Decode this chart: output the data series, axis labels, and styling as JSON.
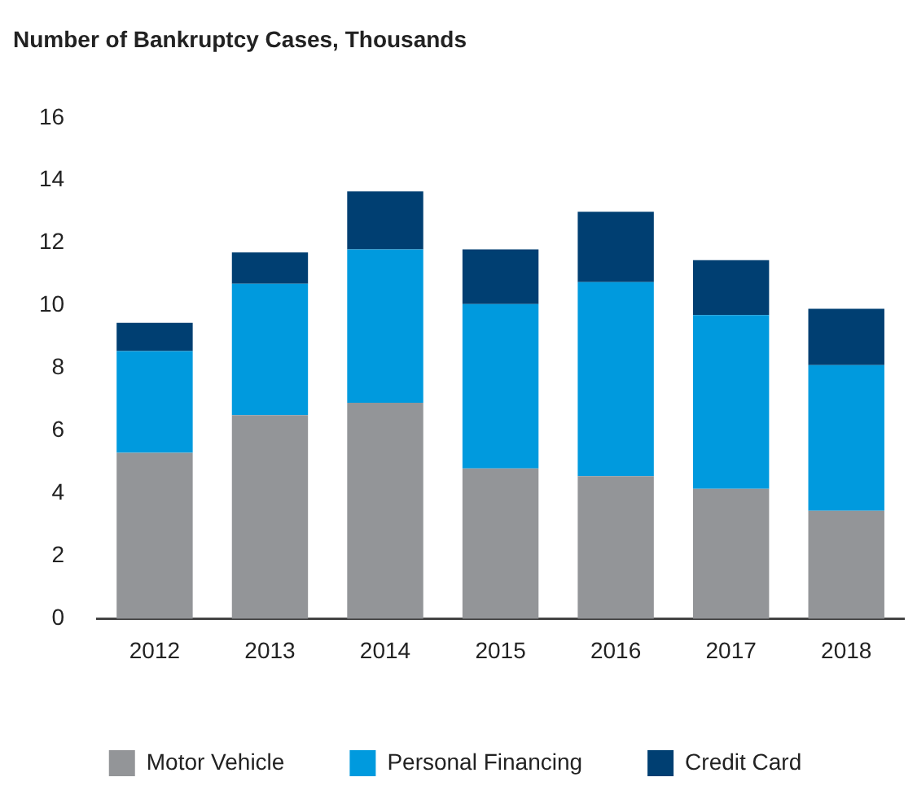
{
  "chart_data": {
    "type": "bar",
    "title": "Number of Bankruptcy Cases, Thousands",
    "categories": [
      "2012",
      "2013",
      "2014",
      "2015",
      "2016",
      "2017",
      "2018"
    ],
    "stacked": true,
    "ylim": [
      0,
      16
    ],
    "yticks": [
      0,
      2,
      4,
      6,
      8,
      10,
      12,
      14,
      16
    ],
    "grid": false,
    "legend": "bottom",
    "series": [
      {
        "name": "Motor Vehicle",
        "color": "#939598",
        "values": [
          5.3,
          6.5,
          6.9,
          4.8,
          4.55,
          4.15,
          3.45
        ]
      },
      {
        "name": "Personal Financing",
        "color": "#009ade",
        "values": [
          3.25,
          4.2,
          4.9,
          5.25,
          6.2,
          5.55,
          4.65
        ]
      },
      {
        "name": "Credit Card",
        "color": "#003f72",
        "values": [
          0.9,
          1.0,
          1.85,
          1.75,
          2.25,
          1.75,
          1.8
        ]
      }
    ]
  }
}
